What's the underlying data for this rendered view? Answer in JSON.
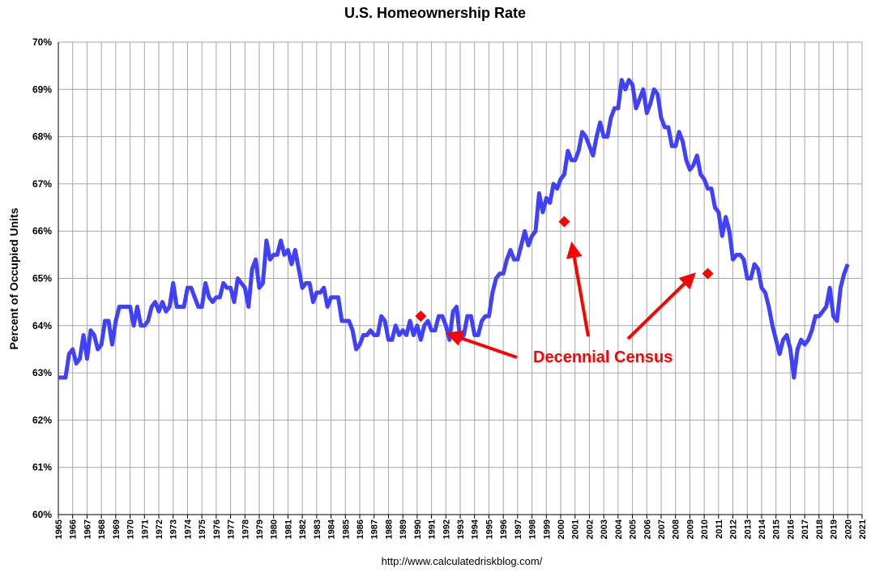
{
  "chart_data": {
    "type": "line",
    "title": "U.S. Homeownership Rate",
    "y_label": "Percent of Occupied Units",
    "source": "http://www.calculatedriskblog.com/",
    "color": "#4040ff",
    "grid": true,
    "xlim": [
      1965,
      2021
    ],
    "xticks": [
      1965,
      1966,
      1967,
      1968,
      1969,
      1970,
      1971,
      1972,
      1973,
      1974,
      1975,
      1976,
      1977,
      1978,
      1979,
      1980,
      1981,
      1982,
      1983,
      1984,
      1985,
      1986,
      1987,
      1988,
      1989,
      1990,
      1991,
      1992,
      1993,
      1994,
      1995,
      1996,
      1997,
      1998,
      1999,
      2000,
      2001,
      2002,
      2003,
      2004,
      2005,
      2006,
      2007,
      2008,
      2009,
      2010,
      2011,
      2012,
      2013,
      2014,
      2015,
      2016,
      2017,
      2018,
      2019,
      2020,
      2021
    ],
    "ylim": [
      60,
      70
    ],
    "yticks": [
      {
        "value": 60,
        "label": "60%"
      },
      {
        "value": 61,
        "label": "61%"
      },
      {
        "value": 62,
        "label": "62%"
      },
      {
        "value": 63,
        "label": "63%"
      },
      {
        "value": 64,
        "label": "64%"
      },
      {
        "value": 65,
        "label": "65%"
      },
      {
        "value": 66,
        "label": "66%"
      },
      {
        "value": 67,
        "label": "67%"
      },
      {
        "value": 68,
        "label": "68%"
      },
      {
        "value": 69,
        "label": "69%"
      },
      {
        "value": 70,
        "label": "70%"
      }
    ],
    "x": [
      1965,
      1965.25,
      1965.5,
      1965.75,
      1966,
      1966.25,
      1966.5,
      1966.75,
      1967,
      1967.25,
      1967.5,
      1967.75,
      1968,
      1968.25,
      1968.5,
      1968.75,
      1969,
      1969.25,
      1969.5,
      1969.75,
      1970,
      1970.25,
      1970.5,
      1970.75,
      1971,
      1971.25,
      1971.5,
      1971.75,
      1972,
      1972.25,
      1972.5,
      1972.75,
      1973,
      1973.25,
      1973.5,
      1973.75,
      1974,
      1974.25,
      1974.5,
      1974.75,
      1975,
      1975.25,
      1975.5,
      1975.75,
      1976,
      1976.25,
      1976.5,
      1976.75,
      1977,
      1977.25,
      1977.5,
      1977.75,
      1978,
      1978.25,
      1978.5,
      1978.75,
      1979,
      1979.25,
      1979.5,
      1979.75,
      1980,
      1980.25,
      1980.5,
      1980.75,
      1981,
      1981.25,
      1981.5,
      1981.75,
      1982,
      1982.25,
      1982.5,
      1982.75,
      1983,
      1983.25,
      1983.5,
      1983.75,
      1984,
      1984.25,
      1984.5,
      1984.75,
      1985,
      1985.25,
      1985.5,
      1985.75,
      1986,
      1986.25,
      1986.5,
      1986.75,
      1987,
      1987.25,
      1987.5,
      1987.75,
      1988,
      1988.25,
      1988.5,
      1988.75,
      1989,
      1989.25,
      1989.5,
      1989.75,
      1990,
      1990.25,
      1990.5,
      1990.75,
      1991,
      1991.25,
      1991.5,
      1991.75,
      1992,
      1992.25,
      1992.5,
      1992.75,
      1993,
      1993.25,
      1993.5,
      1993.75,
      1994,
      1994.25,
      1994.5,
      1994.75,
      1995,
      1995.25,
      1995.5,
      1995.75,
      1996,
      1996.25,
      1996.5,
      1996.75,
      1997,
      1997.25,
      1997.5,
      1997.75,
      1998,
      1998.25,
      1998.5,
      1998.75,
      1999,
      1999.25,
      1999.5,
      1999.75,
      2000,
      2000.25,
      2000.5,
      2000.75,
      2001,
      2001.25,
      2001.5,
      2001.75,
      2002,
      2002.25,
      2002.5,
      2002.75,
      2003,
      2003.25,
      2003.5,
      2003.75,
      2004,
      2004.25,
      2004.5,
      2004.75,
      2005,
      2005.25,
      2005.5,
      2005.75,
      2006,
      2006.25,
      2006.5,
      2006.75,
      2007,
      2007.25,
      2007.5,
      2007.75,
      2008,
      2008.25,
      2008.5,
      2008.75,
      2009,
      2009.25,
      2009.5,
      2009.75,
      2010,
      2010.25,
      2010.5,
      2010.75,
      2011,
      2011.25,
      2011.5,
      2011.75,
      2012,
      2012.25,
      2012.5,
      2012.75,
      2013,
      2013.25,
      2013.5,
      2013.75,
      2014,
      2014.25,
      2014.5,
      2014.75,
      2015,
      2015.25,
      2015.5,
      2015.75,
      2016,
      2016.25,
      2016.5,
      2016.75,
      2017,
      2017.25,
      2017.5,
      2017.75,
      2018,
      2018.25,
      2018.5,
      2018.75,
      2019,
      2019.25,
      2019.5,
      2019.75,
      2020
    ],
    "values": [
      62.9,
      62.9,
      62.9,
      63.4,
      63.5,
      63.2,
      63.3,
      63.8,
      63.3,
      63.9,
      63.8,
      63.5,
      63.6,
      64.1,
      64.1,
      63.6,
      64.1,
      64.4,
      64.4,
      64.4,
      64.4,
      64.0,
      64.4,
      64.0,
      64.0,
      64.1,
      64.4,
      64.5,
      64.3,
      64.5,
      64.3,
      64.4,
      64.9,
      64.4,
      64.4,
      64.4,
      64.8,
      64.8,
      64.6,
      64.4,
      64.4,
      64.9,
      64.6,
      64.5,
      64.6,
      64.6,
      64.9,
      64.8,
      64.8,
      64.5,
      65.0,
      64.9,
      64.8,
      64.4,
      65.2,
      65.4,
      64.8,
      64.9,
      65.8,
      65.4,
      65.5,
      65.5,
      65.8,
      65.5,
      65.6,
      65.3,
      65.6,
      65.2,
      64.8,
      64.9,
      64.9,
      64.5,
      64.7,
      64.7,
      64.8,
      64.4,
      64.6,
      64.6,
      64.6,
      64.1,
      64.1,
      64.1,
      63.9,
      63.5,
      63.6,
      63.8,
      63.8,
      63.9,
      63.8,
      63.8,
      64.2,
      64.1,
      63.7,
      63.7,
      64.0,
      63.8,
      63.9,
      63.8,
      64.1,
      63.8,
      64.0,
      63.7,
      64.0,
      64.1,
      63.9,
      63.9,
      64.2,
      64.2,
      64.0,
      63.7,
      64.3,
      64.4,
      63.7,
      63.8,
      64.2,
      64.2,
      63.8,
      63.8,
      64.1,
      64.2,
      64.2,
      64.7,
      65.0,
      65.1,
      65.1,
      65.4,
      65.6,
      65.4,
      65.4,
      65.7,
      66.0,
      65.7,
      65.9,
      66.0,
      66.8,
      66.4,
      66.7,
      66.6,
      67.0,
      66.9,
      67.1,
      67.2,
      67.7,
      67.5,
      67.5,
      67.7,
      68.1,
      68.0,
      67.8,
      67.6,
      68.0,
      68.3,
      68.0,
      68.0,
      68.4,
      68.6,
      68.6,
      69.2,
      69.0,
      69.2,
      69.1,
      68.6,
      68.8,
      69.0,
      68.5,
      68.7,
      69.0,
      68.9,
      68.4,
      68.2,
      68.2,
      67.8,
      67.8,
      68.1,
      67.9,
      67.5,
      67.3,
      67.4,
      67.6,
      67.2,
      67.1,
      66.9,
      66.9,
      66.5,
      66.4,
      65.9,
      66.3,
      66.0,
      65.4,
      65.5,
      65.5,
      65.4,
      65.0,
      65.0,
      65.3,
      65.2,
      64.8,
      64.7,
      64.4,
      64.0,
      63.7,
      63.4,
      63.7,
      63.8,
      63.5,
      62.9,
      63.5,
      63.7,
      63.6,
      63.7,
      63.9,
      64.2,
      64.2,
      64.3,
      64.4,
      64.8,
      64.2,
      64.1,
      64.8,
      65.1,
      65.3
    ],
    "census": {
      "label": "Decennial Census",
      "color": "#ff0000",
      "x": [
        1990.25,
        2000.25,
        2010.25
      ],
      "values": [
        64.2,
        66.2,
        65.1
      ]
    }
  }
}
